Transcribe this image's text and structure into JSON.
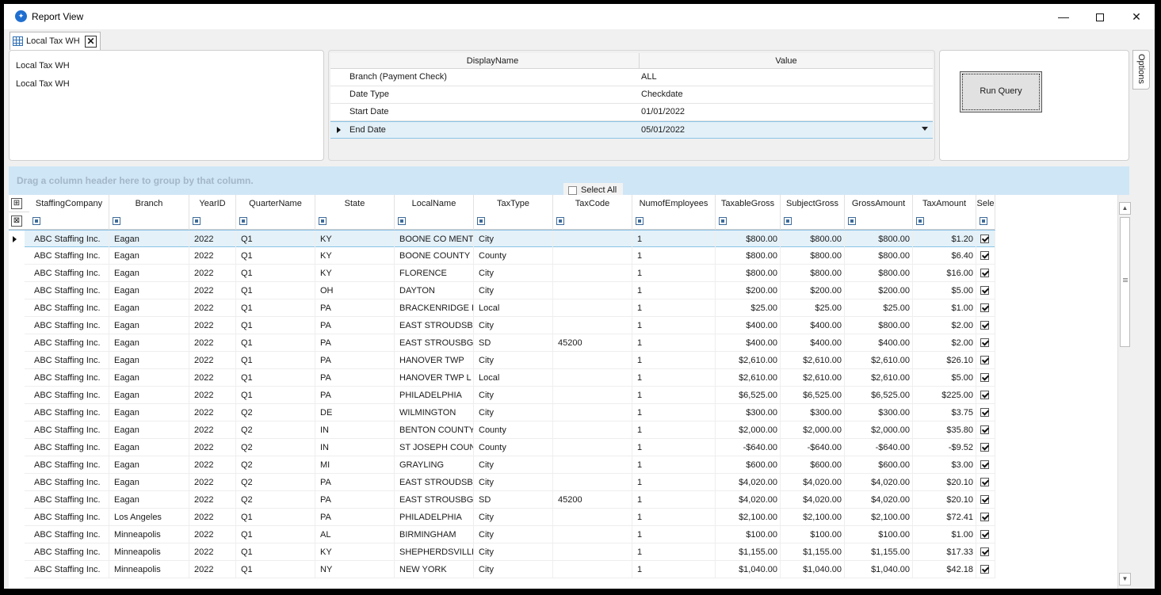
{
  "window": {
    "title": "Report View"
  },
  "tab": {
    "label": "Local Tax WH"
  },
  "report_info": {
    "line1": "Local Tax WH",
    "line2": "Local Tax WH"
  },
  "parameters": {
    "headers": {
      "name": "DisplayName",
      "value": "Value"
    },
    "rows": [
      {
        "name": "Branch (Payment Check)",
        "value": "ALL"
      },
      {
        "name": "Date Type",
        "value": "Checkdate"
      },
      {
        "name": "Start Date",
        "value": "01/01/2022"
      },
      {
        "name": "End Date",
        "value": "05/01/2022"
      }
    ]
  },
  "run_query_label": "Run Query",
  "options_label": "Options",
  "group_hint": "Drag a column header here to group by that column.",
  "select_all_label": "Select All",
  "grid": {
    "columns": [
      "StaffingCompany",
      "Branch",
      "YearID",
      "QuarterName",
      "State",
      "LocalName",
      "TaxType",
      "TaxCode",
      "NumofEmployees",
      "TaxableGross",
      "SubjectGross",
      "GrossAmount",
      "TaxAmount",
      "Sele"
    ],
    "rows": [
      [
        "ABC Staffing Inc.",
        "Eagan",
        "2022",
        "Q1",
        "KY",
        "BOONE CO MENT",
        "City",
        "",
        "1",
        "$800.00",
        "$800.00",
        "$800.00",
        "$1.20"
      ],
      [
        "ABC Staffing Inc.",
        "Eagan",
        "2022",
        "Q1",
        "KY",
        "BOONE COUNTY",
        "County",
        "",
        "1",
        "$800.00",
        "$800.00",
        "$800.00",
        "$6.40"
      ],
      [
        "ABC Staffing Inc.",
        "Eagan",
        "2022",
        "Q1",
        "KY",
        "FLORENCE",
        "City",
        "",
        "1",
        "$800.00",
        "$800.00",
        "$800.00",
        "$16.00"
      ],
      [
        "ABC Staffing Inc.",
        "Eagan",
        "2022",
        "Q1",
        "OH",
        "DAYTON",
        "City",
        "",
        "1",
        "$200.00",
        "$200.00",
        "$200.00",
        "$5.00"
      ],
      [
        "ABC Staffing Inc.",
        "Eagan",
        "2022",
        "Q1",
        "PA",
        "BRACKENRIDGE L",
        "Local",
        "",
        "1",
        "$25.00",
        "$25.00",
        "$25.00",
        "$1.00"
      ],
      [
        "ABC Staffing Inc.",
        "Eagan",
        "2022",
        "Q1",
        "PA",
        "EAST STROUDSBU",
        "City",
        "",
        "1",
        "$400.00",
        "$400.00",
        "$800.00",
        "$2.00"
      ],
      [
        "ABC Staffing Inc.",
        "Eagan",
        "2022",
        "Q1",
        "PA",
        "EAST STROUSBG",
        "SD",
        "45200",
        "1",
        "$400.00",
        "$400.00",
        "$400.00",
        "$2.00"
      ],
      [
        "ABC Staffing Inc.",
        "Eagan",
        "2022",
        "Q1",
        "PA",
        "HANOVER TWP",
        "City",
        "",
        "1",
        "$2,610.00",
        "$2,610.00",
        "$2,610.00",
        "$26.10"
      ],
      [
        "ABC Staffing Inc.",
        "Eagan",
        "2022",
        "Q1",
        "PA",
        "HANOVER TWP L",
        "Local",
        "",
        "1",
        "$2,610.00",
        "$2,610.00",
        "$2,610.00",
        "$5.00"
      ],
      [
        "ABC Staffing Inc.",
        "Eagan",
        "2022",
        "Q1",
        "PA",
        "PHILADELPHIA",
        "City",
        "",
        "1",
        "$6,525.00",
        "$6,525.00",
        "$6,525.00",
        "$225.00"
      ],
      [
        "ABC Staffing Inc.",
        "Eagan",
        "2022",
        "Q2",
        "DE",
        "WILMINGTON",
        "City",
        "",
        "1",
        "$300.00",
        "$300.00",
        "$300.00",
        "$3.75"
      ],
      [
        "ABC Staffing Inc.",
        "Eagan",
        "2022",
        "Q2",
        "IN",
        "BENTON COUNTY",
        "County",
        "",
        "1",
        "$2,000.00",
        "$2,000.00",
        "$2,000.00",
        "$35.80"
      ],
      [
        "ABC Staffing Inc.",
        "Eagan",
        "2022",
        "Q2",
        "IN",
        "ST JOSEPH COUN",
        "County",
        "",
        "1",
        "-$640.00",
        "-$640.00",
        "-$640.00",
        "-$9.52"
      ],
      [
        "ABC Staffing Inc.",
        "Eagan",
        "2022",
        "Q2",
        "MI",
        "GRAYLING",
        "City",
        "",
        "1",
        "$600.00",
        "$600.00",
        "$600.00",
        "$3.00"
      ],
      [
        "ABC Staffing Inc.",
        "Eagan",
        "2022",
        "Q2",
        "PA",
        "EAST STROUDSBU",
        "City",
        "",
        "1",
        "$4,020.00",
        "$4,020.00",
        "$4,020.00",
        "$20.10"
      ],
      [
        "ABC Staffing Inc.",
        "Eagan",
        "2022",
        "Q2",
        "PA",
        "EAST STROUSBG",
        "SD",
        "45200",
        "1",
        "$4,020.00",
        "$4,020.00",
        "$4,020.00",
        "$20.10"
      ],
      [
        "ABC Staffing Inc.",
        "Los Angeles",
        "2022",
        "Q1",
        "PA",
        "PHILADELPHIA",
        "City",
        "",
        "1",
        "$2,100.00",
        "$2,100.00",
        "$2,100.00",
        "$72.41"
      ],
      [
        "ABC Staffing Inc.",
        "Minneapolis",
        "2022",
        "Q1",
        "AL",
        "BIRMINGHAM",
        "City",
        "",
        "1",
        "$100.00",
        "$100.00",
        "$100.00",
        "$1.00"
      ],
      [
        "ABC Staffing Inc.",
        "Minneapolis",
        "2022",
        "Q1",
        "KY",
        "SHEPHERDSVILLE",
        "City",
        "",
        "1",
        "$1,155.00",
        "$1,155.00",
        "$1,155.00",
        "$17.33"
      ],
      [
        "ABC Staffing Inc.",
        "Minneapolis",
        "2022",
        "Q1",
        "NY",
        "NEW YORK",
        "City",
        "",
        "1",
        "$1,040.00",
        "$1,040.00",
        "$1,040.00",
        "$42.18"
      ]
    ]
  }
}
